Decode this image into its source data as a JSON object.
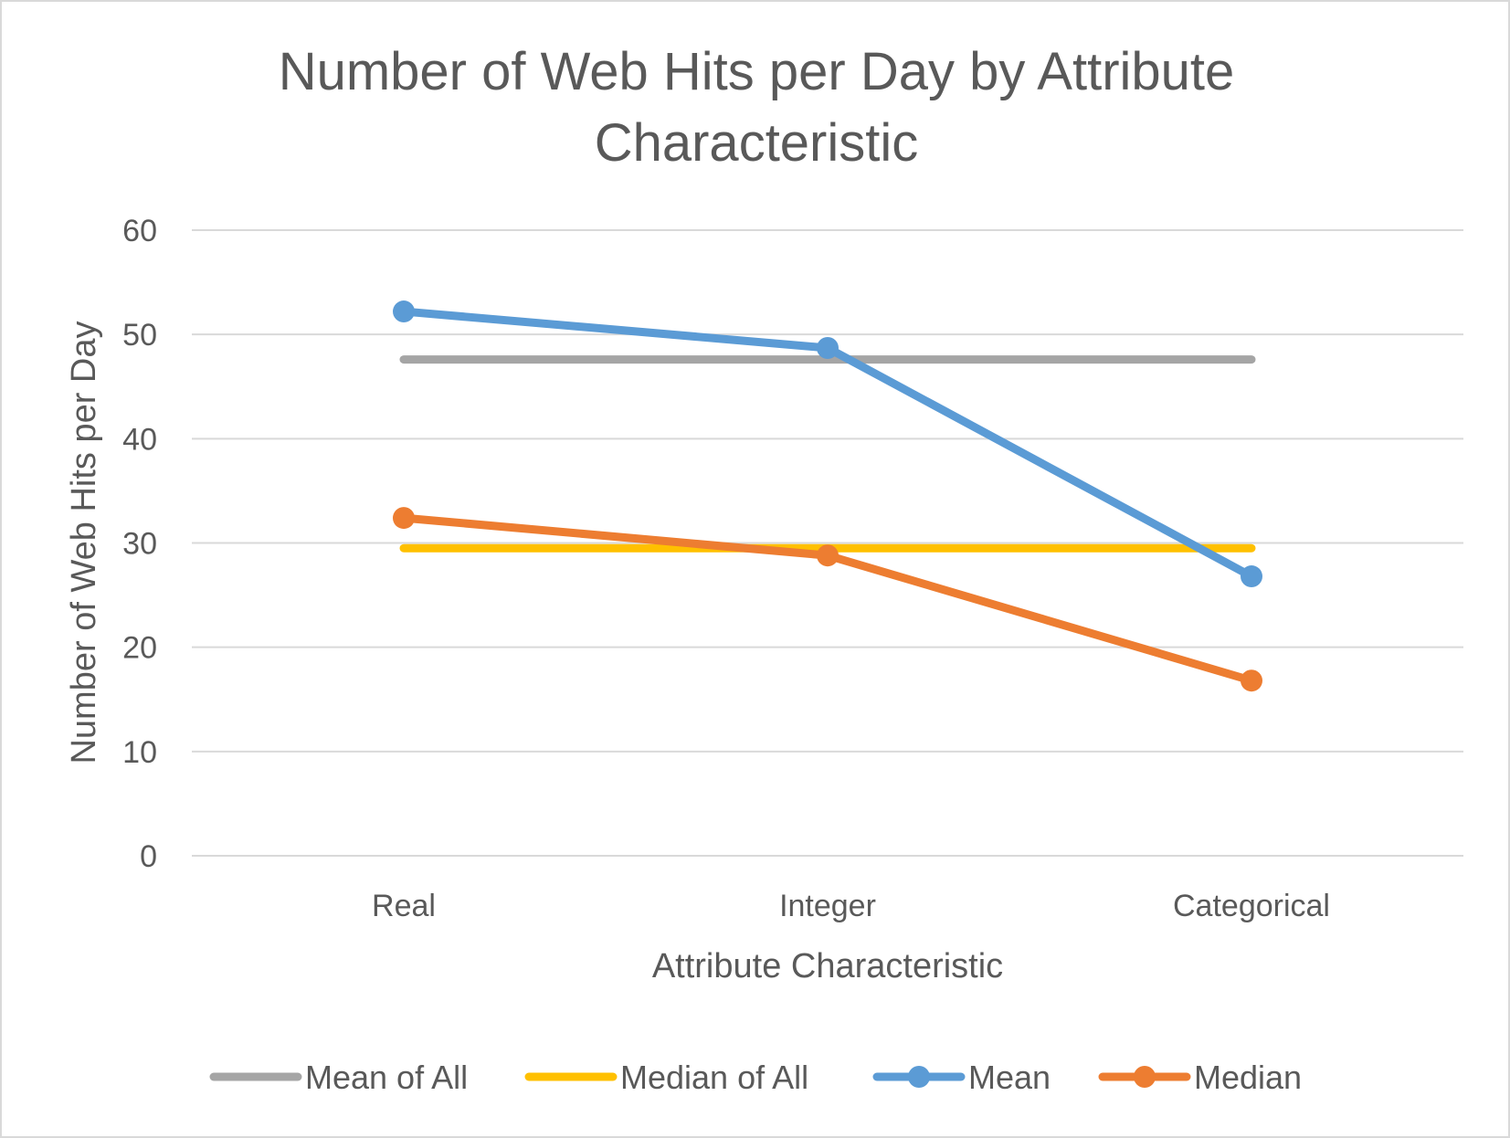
{
  "chart_data": {
    "type": "line",
    "title_lines": [
      "Number of Web Hits per Day by Attribute",
      "Characteristic"
    ],
    "xlabel": "Attribute Characteristic",
    "ylabel": "Number of Web Hits per Day",
    "categories": [
      "Real",
      "Integer",
      "Categorical"
    ],
    "ylim": [
      0,
      60
    ],
    "yticks": [
      "0",
      "10",
      "20",
      "30",
      "40",
      "50",
      "60"
    ],
    "grid": true,
    "legend_position": "bottom",
    "series": [
      {
        "name": "Mean of All",
        "values": [
          47.6,
          47.6,
          47.6
        ],
        "color": "#a5a5a5",
        "markers": false
      },
      {
        "name": "Median of All",
        "values": [
          29.5,
          29.5,
          29.5
        ],
        "color": "#ffc000",
        "markers": false
      },
      {
        "name": "Mean",
        "values": [
          52.2,
          48.7,
          26.8
        ],
        "color": "#5b9bd5",
        "markers": true
      },
      {
        "name": "Median",
        "values": [
          32.4,
          28.8,
          16.8
        ],
        "color": "#ed7d31",
        "markers": true
      }
    ]
  }
}
